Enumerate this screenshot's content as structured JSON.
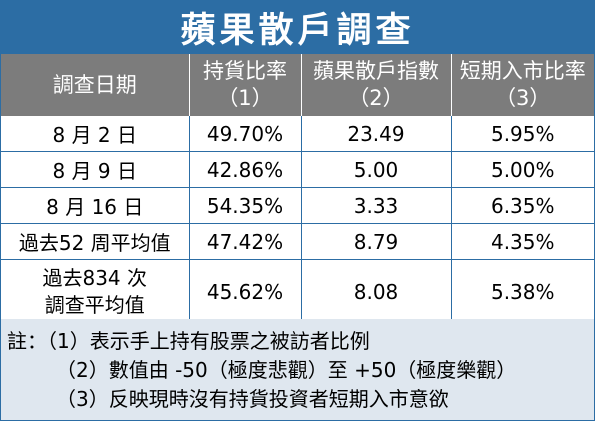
{
  "title": "蘋果散戶調查",
  "headers": [
    {
      "line1": "調查日期",
      "line2": ""
    },
    {
      "line1": "持貨比率",
      "line2": "（1）"
    },
    {
      "line1": "蘋果散戶指數",
      "line2": "（2）"
    },
    {
      "line1": "短期入市比率",
      "line2": "（3）"
    }
  ],
  "rows": [
    {
      "date": "8 月 2 日",
      "holding": "49.70%",
      "index": "23.49",
      "short_term": "5.95%"
    },
    {
      "date": "8 月 9 日",
      "holding": "42.86%",
      "index": "5.00",
      "short_term": "5.00%"
    },
    {
      "date": "8 月 16 日",
      "holding": "54.35%",
      "index": "3.33",
      "short_term": "6.35%"
    },
    {
      "date": "過去52 周平均值",
      "holding": "47.42%",
      "index": "8.79",
      "short_term": "4.35%"
    },
    {
      "date_line1": "過去834 次",
      "date_line2": "調查平均值",
      "holding": "45.62%",
      "index": "8.08",
      "short_term": "5.38%"
    }
  ],
  "notes": {
    "label": "註：",
    "items": [
      "（1）表示手上持有股票之被訪者比例",
      "（2）數值由 -50（極度悲觀）至 +50（極度樂觀）",
      "（3）反映現時沒有持貨投資者短期入市意欲"
    ]
  }
}
